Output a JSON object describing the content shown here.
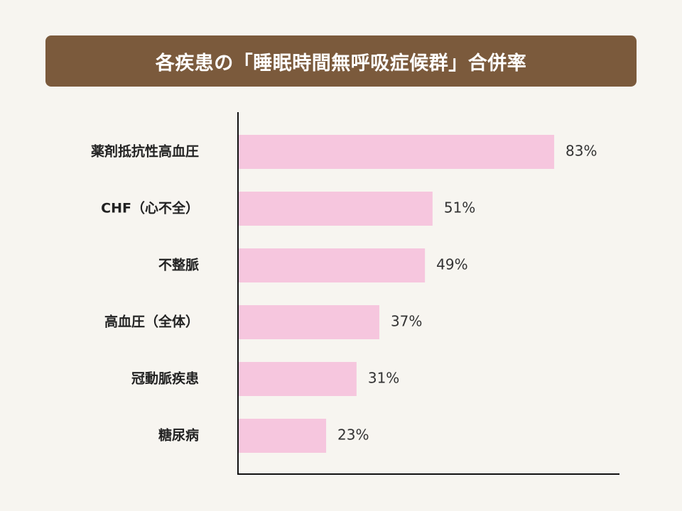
{
  "title": "各疾患の「睡眠時間無呼吸症候群」合併率",
  "colors": {
    "banner": "#7b5a3c",
    "bar": "#f6c6de",
    "axis": "#111111"
  },
  "chart_data": {
    "type": "bar",
    "orientation": "horizontal",
    "title": "各疾患の「睡眠時間無呼吸症候群」合併率",
    "categories": [
      "薬剤抵抗性高血圧",
      "CHF（心不全）",
      "不整脈",
      "高血圧（全体）",
      "冠動脈疾患",
      "糖尿病"
    ],
    "values": [
      83,
      51,
      49,
      37,
      31,
      23
    ],
    "value_labels": [
      "83%",
      "51%",
      "49%",
      "37%",
      "31%",
      "23%"
    ],
    "unit": "%",
    "xlim": [
      0,
      100
    ],
    "xlabel": "",
    "ylabel": "",
    "grid": false,
    "legend": "none"
  }
}
